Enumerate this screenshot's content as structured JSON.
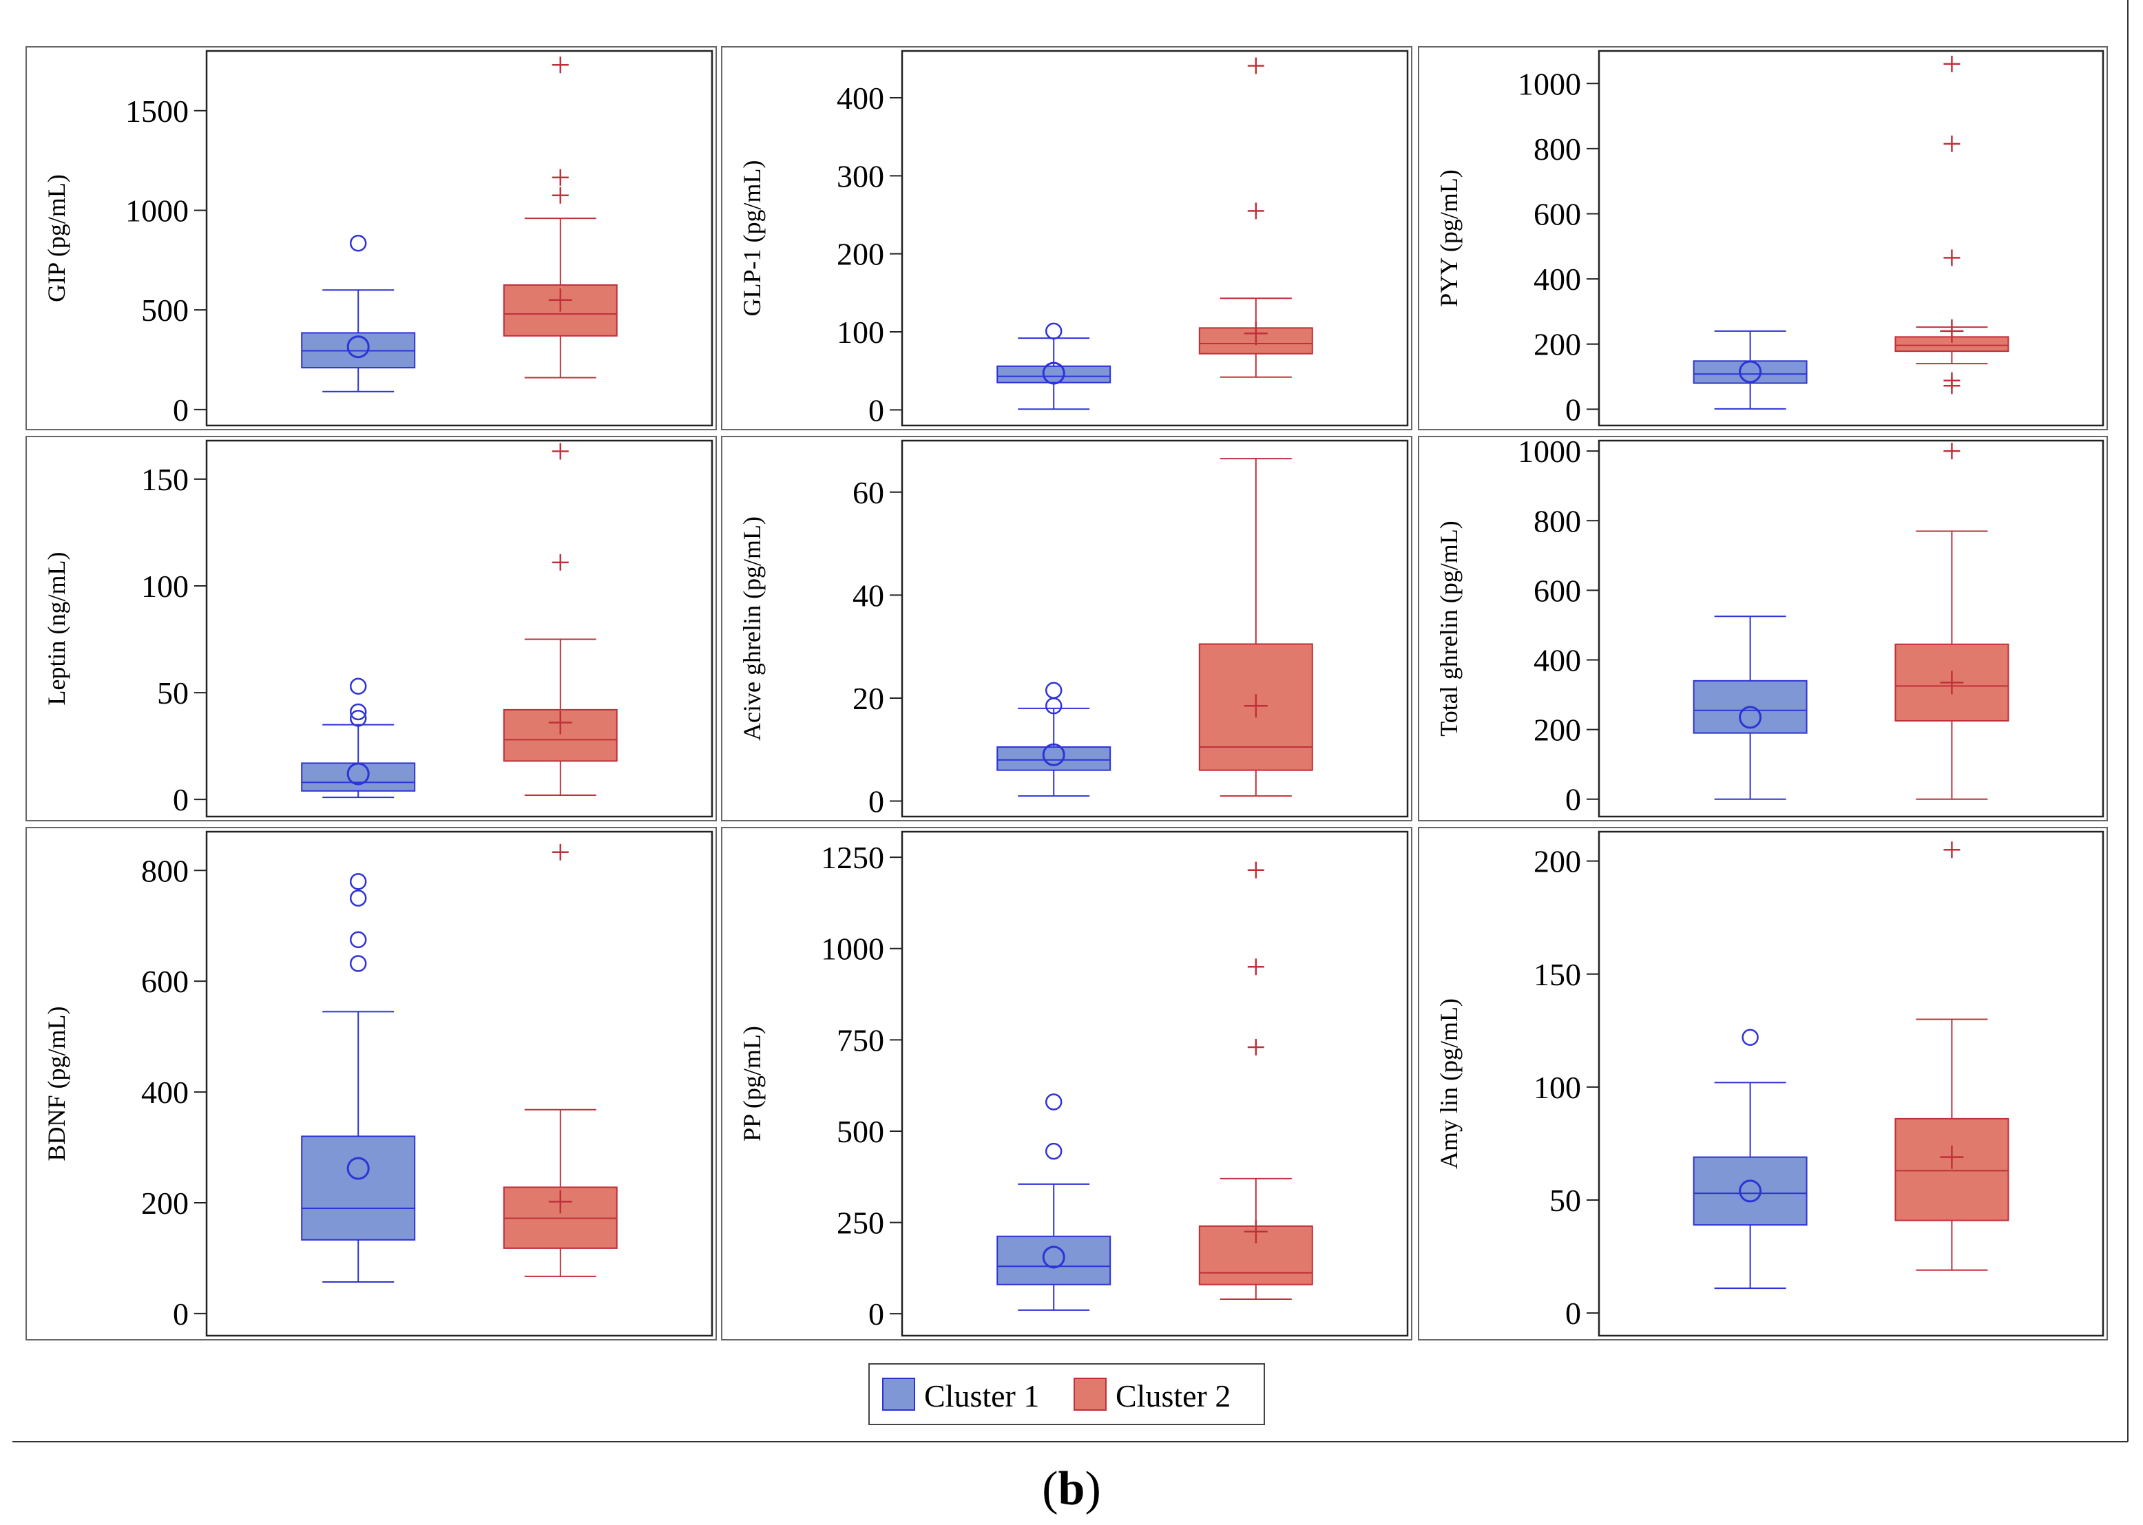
{
  "colors": {
    "cluster1_fill": "#7f97d4",
    "cluster1_line": "#2f33d6",
    "cluster2_fill": "#e07a6c",
    "cluster2_line": "#c0303a",
    "frame": "#555555"
  },
  "legend": {
    "labels": [
      "Cluster 1",
      "Cluster 2"
    ]
  },
  "caption": {
    "open": "(",
    "letter": "b",
    "close": ")"
  },
  "chart_data": [
    {
      "type": "box",
      "ylabel": "GIP (pg/mL)",
      "ylim": [
        -80,
        1800
      ],
      "yticks": [
        0,
        500,
        1000,
        1500
      ],
      "series": [
        {
          "name": "Cluster 1",
          "min": 90,
          "q1": 210,
          "median": 295,
          "q3": 385,
          "max": 600,
          "mean": 315,
          "outliers": [
            835
          ]
        },
        {
          "name": "Cluster 2",
          "min": 160,
          "q1": 370,
          "median": 480,
          "q3": 625,
          "max": 960,
          "mean": 550,
          "outliers": [
            1075,
            1165,
            1730
          ]
        }
      ]
    },
    {
      "type": "box",
      "ylabel": "GLP-1 (pg/mL)",
      "ylim": [
        -20,
        460
      ],
      "yticks": [
        0,
        100,
        200,
        300,
        400
      ],
      "series": [
        {
          "name": "Cluster 1",
          "min": 1,
          "q1": 35,
          "median": 43,
          "q3": 56,
          "max": 92,
          "mean": 47,
          "outliers": [
            101
          ]
        },
        {
          "name": "Cluster 2",
          "min": 42,
          "q1": 72,
          "median": 85,
          "q3": 105,
          "max": 143,
          "mean": 98,
          "outliers": [
            255,
            441
          ]
        }
      ]
    },
    {
      "type": "box",
      "ylabel": "PYY (pg/mL)",
      "ylim": [
        -50,
        1100
      ],
      "yticks": [
        0,
        200,
        400,
        600,
        800,
        1000
      ],
      "series": [
        {
          "name": "Cluster 1",
          "min": 1,
          "q1": 80,
          "median": 108,
          "q3": 148,
          "max": 240,
          "mean": 115,
          "outliers": []
        },
        {
          "name": "Cluster 2",
          "min": 140,
          "q1": 178,
          "median": 196,
          "q3": 222,
          "max": 252,
          "mean": 240,
          "outliers": [
            72,
            88,
            465,
            815,
            1060
          ]
        }
      ]
    },
    {
      "type": "box",
      "ylabel": "Leptin (ng/mL)",
      "ylim": [
        -8,
        168
      ],
      "yticks": [
        0,
        50,
        100,
        150
      ],
      "series": [
        {
          "name": "Cluster 1",
          "min": 1,
          "q1": 4,
          "median": 8,
          "q3": 17,
          "max": 35,
          "mean": 12,
          "outliers": [
            38,
            41,
            53
          ]
        },
        {
          "name": "Cluster 2",
          "min": 2,
          "q1": 18,
          "median": 28,
          "q3": 42,
          "max": 75,
          "mean": 36,
          "outliers": [
            111,
            163
          ]
        }
      ]
    },
    {
      "type": "box",
      "ylabel": "Acive ghrelin (pg/mL)",
      "ylim": [
        -3,
        70
      ],
      "yticks": [
        0,
        20,
        40,
        60
      ],
      "series": [
        {
          "name": "Cluster 1",
          "min": 1,
          "q1": 6,
          "median": 8,
          "q3": 10.5,
          "max": 18,
          "mean": 9,
          "outliers": [
            18.5,
            21.5
          ]
        },
        {
          "name": "Cluster 2",
          "min": 1,
          "q1": 6,
          "median": 10.5,
          "q3": 30.5,
          "max": 66.5,
          "mean": 18.5,
          "outliers": []
        }
      ]
    },
    {
      "type": "box",
      "ylabel": "Total ghrelin (pg/mL)",
      "ylim": [
        -50,
        1030
      ],
      "yticks": [
        0,
        200,
        400,
        600,
        800,
        1000
      ],
      "series": [
        {
          "name": "Cluster 1",
          "min": 0,
          "q1": 190,
          "median": 255,
          "q3": 340,
          "max": 525,
          "mean": 235,
          "outliers": []
        },
        {
          "name": "Cluster 2",
          "min": 0,
          "q1": 225,
          "median": 325,
          "q3": 445,
          "max": 770,
          "mean": 335,
          "outliers": [
            1000
          ]
        }
      ]
    },
    {
      "type": "box",
      "ylabel": "BDNF (pg/mL)",
      "ylim": [
        -40,
        870
      ],
      "yticks": [
        0,
        200,
        400,
        600,
        800
      ],
      "series": [
        {
          "name": "Cluster 1",
          "min": 57,
          "q1": 133,
          "median": 190,
          "q3": 320,
          "max": 545,
          "mean": 262,
          "outliers": [
            632,
            675,
            750,
            780
          ]
        },
        {
          "name": "Cluster 2",
          "min": 67,
          "q1": 118,
          "median": 172,
          "q3": 228,
          "max": 368,
          "mean": 202,
          "outliers": [
            833
          ]
        }
      ]
    },
    {
      "type": "box",
      "ylabel": "PP (pg/mL)",
      "ylim": [
        -60,
        1320
      ],
      "yticks": [
        0,
        250,
        500,
        750,
        1000,
        1250
      ],
      "series": [
        {
          "name": "Cluster 1",
          "min": 10,
          "q1": 80,
          "median": 130,
          "q3": 212,
          "max": 355,
          "mean": 155,
          "outliers": [
            445,
            580
          ]
        },
        {
          "name": "Cluster 2",
          "min": 40,
          "q1": 80,
          "median": 112,
          "q3": 240,
          "max": 370,
          "mean": 225,
          "outliers": [
            730,
            950,
            1215
          ]
        }
      ]
    },
    {
      "type": "box",
      "ylabel": "Amy lin (pg/mL)",
      "ylim": [
        -10,
        213
      ],
      "yticks": [
        0,
        50,
        100,
        150,
        200
      ],
      "series": [
        {
          "name": "Cluster 1",
          "min": 11,
          "q1": 39,
          "median": 53,
          "q3": 69,
          "max": 102,
          "mean": 54,
          "outliers": [
            122
          ]
        },
        {
          "name": "Cluster 2",
          "min": 19,
          "q1": 41,
          "median": 63,
          "q3": 86,
          "max": 130,
          "mean": 69,
          "outliers": [
            205
          ]
        }
      ]
    }
  ]
}
